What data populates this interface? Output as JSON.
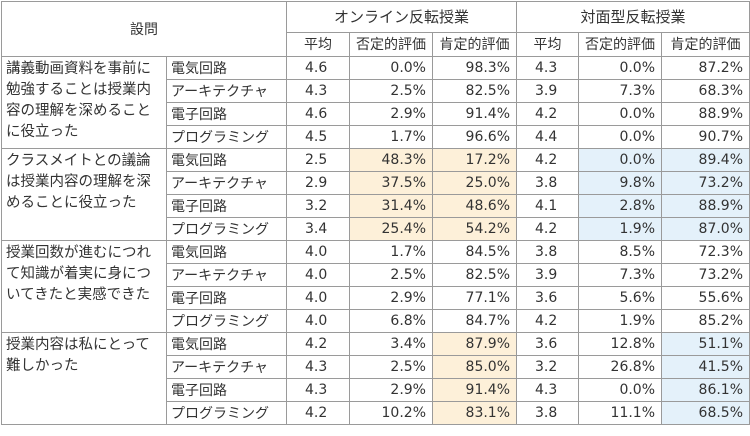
{
  "header": {
    "question": "設問",
    "online": "オンライン反転授業",
    "face": "対面型反転授業",
    "avg": "平均",
    "neg": "否定的評価",
    "pos": "肯定的評価"
  },
  "colors": {
    "orange_highlight": "#fdf0d9",
    "blue_highlight": "#e4f1fa",
    "border": "#9a9a9a"
  },
  "questions": [
    {
      "text": "講義動画資料を事前に勉強することは授業内容の理解を深めることに役立った",
      "rows": [
        {
          "subject": "電気回路",
          "online": [
            "4.6",
            "0.0%",
            "98.3%"
          ],
          "face": [
            "4.3",
            "0.0%",
            "87.2%"
          ]
        },
        {
          "subject": "アーキテクチャ",
          "online": [
            "4.3",
            "2.5%",
            "82.5%"
          ],
          "face": [
            "3.9",
            "7.3%",
            "68.3%"
          ]
        },
        {
          "subject": "電子回路",
          "online": [
            "4.6",
            "2.9%",
            "91.4%"
          ],
          "face": [
            "4.2",
            "0.0%",
            "88.9%"
          ]
        },
        {
          "subject": "プログラミング",
          "online": [
            "4.5",
            "1.7%",
            "96.6%"
          ],
          "face": [
            "4.4",
            "0.0%",
            "90.7%"
          ]
        }
      ]
    },
    {
      "text": "クラスメイトとの議論は授業内容の理解を深めることに役立った",
      "rows": [
        {
          "subject": "電気回路",
          "online": [
            "2.5",
            "48.3%",
            "17.2%"
          ],
          "face": [
            "4.2",
            "0.0%",
            "89.4%"
          ]
        },
        {
          "subject": "アーキテクチャ",
          "online": [
            "2.9",
            "37.5%",
            "25.0%"
          ],
          "face": [
            "3.8",
            "9.8%",
            "73.2%"
          ]
        },
        {
          "subject": "電子回路",
          "online": [
            "3.2",
            "31.4%",
            "48.6%"
          ],
          "face": [
            "4.1",
            "2.8%",
            "88.9%"
          ]
        },
        {
          "subject": "プログラミング",
          "online": [
            "3.4",
            "25.4%",
            "54.2%"
          ],
          "face": [
            "4.2",
            "1.9%",
            "87.0%"
          ]
        }
      ]
    },
    {
      "text": "授業回数が進むにつれて知識が着実に身についてきたと実感できた",
      "rows": [
        {
          "subject": "電気回路",
          "online": [
            "4.0",
            "1.7%",
            "84.5%"
          ],
          "face": [
            "3.8",
            "8.5%",
            "72.3%"
          ]
        },
        {
          "subject": "アーキテクチャ",
          "online": [
            "4.0",
            "2.5%",
            "82.5%"
          ],
          "face": [
            "3.9",
            "7.3%",
            "73.2%"
          ]
        },
        {
          "subject": "電子回路",
          "online": [
            "4.0",
            "2.9%",
            "77.1%"
          ],
          "face": [
            "3.6",
            "5.6%",
            "55.6%"
          ]
        },
        {
          "subject": "プログラミング",
          "online": [
            "4.0",
            "6.8%",
            "84.7%"
          ],
          "face": [
            "4.2",
            "1.9%",
            "85.2%"
          ]
        }
      ]
    },
    {
      "text": "授業内容は私にとって難しかった",
      "rows": [
        {
          "subject": "電気回路",
          "online": [
            "4.2",
            "3.4%",
            "87.9%"
          ],
          "face": [
            "3.6",
            "12.8%",
            "51.1%"
          ]
        },
        {
          "subject": "アーキテクチャ",
          "online": [
            "4.3",
            "2.5%",
            "85.0%"
          ],
          "face": [
            "3.2",
            "26.8%",
            "41.5%"
          ]
        },
        {
          "subject": "電子回路",
          "online": [
            "4.3",
            "2.9%",
            "91.4%"
          ],
          "face": [
            "4.3",
            "0.0%",
            "86.1%"
          ]
        },
        {
          "subject": "プログラミング",
          "online": [
            "4.2",
            "10.2%",
            "83.1%"
          ],
          "face": [
            "3.8",
            "11.1%",
            "68.5%"
          ]
        }
      ]
    }
  ],
  "highlights": {
    "q2": {
      "online_neg": "orange",
      "online_pos": "orange",
      "face_neg": "blue",
      "face_pos": "blue"
    },
    "q4": {
      "online_pos": "orange",
      "face_pos": "blue"
    }
  }
}
